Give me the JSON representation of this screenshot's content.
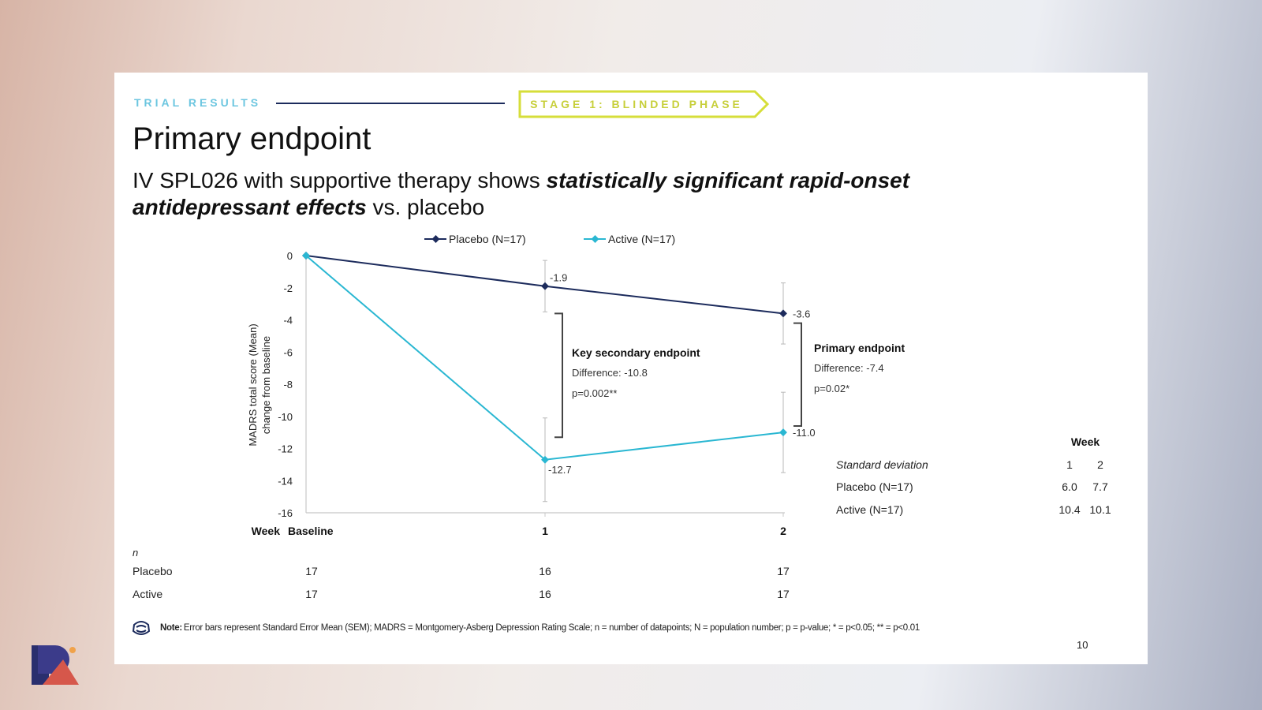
{
  "header": {
    "section": "TRIAL RESULTS",
    "stage": "STAGE 1: BLINDED PHASE",
    "title": "Primary endpoint",
    "subtitle_pre": "IV SPL026 with supportive therapy shows ",
    "subtitle_em": "statistically significant rapid-onset antidepressant effects",
    "subtitle_post": " vs. placebo"
  },
  "chart_data": {
    "type": "line",
    "ylabel_line1": "MADRS total score (Mean)",
    "ylabel_line2": "change from baseline",
    "xlabel": "Week",
    "ylim": [
      -16,
      0
    ],
    "yticks": [
      0,
      -2,
      -4,
      -6,
      -8,
      -10,
      -12,
      -14,
      -16
    ],
    "categories": [
      "Baseline",
      "1",
      "2"
    ],
    "series": [
      {
        "name": "Placebo (N=17)",
        "color": "#1c2b5c",
        "values": [
          0,
          -1.9,
          -3.6
        ],
        "labels": [
          "",
          "-1.9",
          "-3.6"
        ],
        "error": [
          0,
          1.6,
          1.9
        ]
      },
      {
        "name": "Active (N=17)",
        "color": "#2ab7d2",
        "values": [
          0,
          -12.7,
          -11.0
        ],
        "labels": [
          "",
          "-12.7",
          "-11.0"
        ],
        "error": [
          0,
          2.6,
          2.5
        ]
      }
    ],
    "annotations": [
      {
        "title": "Key secondary endpoint",
        "line1": "Difference: -10.8",
        "line2": "p=0.002**"
      },
      {
        "title": "Primary endpoint",
        "line1": "Difference: -7.4",
        "line2": "p=0.02*"
      }
    ],
    "n_table": {
      "header": "n",
      "rows": [
        {
          "label": "Placebo",
          "values": [
            "17",
            "16",
            "17"
          ]
        },
        {
          "label": "Active",
          "values": [
            "17",
            "16",
            "17"
          ]
        }
      ]
    },
    "sd_table": {
      "header": "Week",
      "title": "Standard deviation",
      "weeks": [
        "1",
        "2"
      ],
      "rows": [
        {
          "label": "Placebo (N=17)",
          "values": [
            "6.0",
            "7.7"
          ]
        },
        {
          "label": "Active (N=17)",
          "values": [
            "10.4",
            "10.1"
          ]
        }
      ]
    }
  },
  "footer": {
    "note_label": "Note:",
    "note_text": "Error bars represent Standard Error Mean (SEM); MADRS = Montgomery-Asberg Depression Rating Scale; n = number of datapoints; N = population number; p = p-value; * = p<0.05; ** = p<0.01",
    "page_number": "10"
  },
  "colors": {
    "navy": "#1c2b5c",
    "cyan": "#2ab7d2",
    "lime": "#d6de3a",
    "section": "#6cc6e0"
  }
}
